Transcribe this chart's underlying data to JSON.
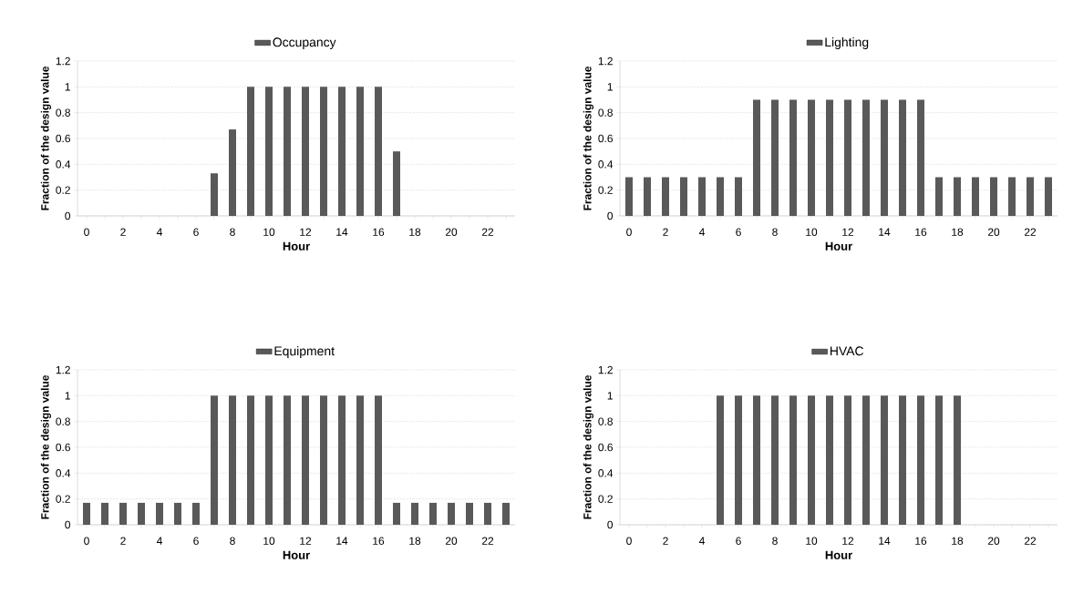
{
  "chart_data": [
    {
      "type": "bar",
      "categories": [
        "0",
        null,
        "2",
        null,
        "4",
        null,
        "6",
        null,
        "8",
        null,
        "10",
        null,
        "12",
        null,
        "14",
        null,
        "16",
        null,
        "18",
        null,
        "20",
        null,
        "22",
        null
      ],
      "series": [
        {
          "name": "Occupancy",
          "color": "#595959",
          "values": [
            0,
            0,
            0,
            0,
            0,
            0,
            0,
            0.33,
            0.67,
            1,
            1,
            1,
            1,
            1,
            1,
            1,
            1,
            0.5,
            0,
            0,
            0,
            0,
            0,
            0
          ]
        }
      ],
      "xlabel": "Hour",
      "ylabel": "Fraction of the design value",
      "ylim": [
        0,
        1.2
      ],
      "yticks": [
        0,
        0.2,
        0.4,
        0.6,
        0.8,
        1,
        1.2
      ],
      "grid": "y",
      "legend": "top"
    },
    {
      "type": "bar",
      "categories": [
        "0",
        null,
        "2",
        null,
        "4",
        null,
        "6",
        null,
        "8",
        null,
        "10",
        null,
        "12",
        null,
        "14",
        null,
        "16",
        null,
        "18",
        null,
        "20",
        null,
        "22",
        null
      ],
      "series": [
        {
          "name": "Lighting",
          "color": "#595959",
          "values": [
            0.3,
            0.3,
            0.3,
            0.3,
            0.3,
            0.3,
            0.3,
            0.9,
            0.9,
            0.9,
            0.9,
            0.9,
            0.9,
            0.9,
            0.9,
            0.9,
            0.9,
            0.3,
            0.3,
            0.3,
            0.3,
            0.3,
            0.3,
            0.3
          ]
        }
      ],
      "xlabel": "Hour",
      "ylabel": "Fraction of the design value",
      "ylim": [
        0,
        1.2
      ],
      "yticks": [
        0,
        0.2,
        0.4,
        0.6,
        0.8,
        1,
        1.2
      ],
      "grid": "y",
      "legend": "top"
    },
    {
      "type": "bar",
      "categories": [
        "0",
        null,
        "2",
        null,
        "4",
        null,
        "6",
        null,
        "8",
        null,
        "10",
        null,
        "12",
        null,
        "14",
        null,
        "16",
        null,
        "18",
        null,
        "20",
        null,
        "22",
        null
      ],
      "series": [
        {
          "name": "Equipment",
          "color": "#595959",
          "values": [
            0.17,
            0.17,
            0.17,
            0.17,
            0.17,
            0.17,
            0.17,
            1,
            1,
            1,
            1,
            1,
            1,
            1,
            1,
            1,
            1,
            0.17,
            0.17,
            0.17,
            0.17,
            0.17,
            0.17,
            0.17
          ]
        }
      ],
      "xlabel": "Hour",
      "ylabel": "Fraction of the design value",
      "ylim": [
        0,
        1.2
      ],
      "yticks": [
        0,
        0.2,
        0.4,
        0.6,
        0.8,
        1,
        1.2
      ],
      "grid": "y",
      "legend": "top"
    },
    {
      "type": "bar",
      "categories": [
        "0",
        null,
        "2",
        null,
        "4",
        null,
        "6",
        null,
        "8",
        null,
        "10",
        null,
        "12",
        null,
        "14",
        null,
        "16",
        null,
        "18",
        null,
        "20",
        null,
        "22",
        null
      ],
      "series": [
        {
          "name": "HVAC",
          "color": "#595959",
          "values": [
            0,
            0,
            0,
            0,
            0,
            1,
            1,
            1,
            1,
            1,
            1,
            1,
            1,
            1,
            1,
            1,
            1,
            1,
            1,
            0,
            0,
            0,
            0,
            0
          ]
        }
      ],
      "xlabel": "Hour",
      "ylabel": "Fraction of the design value",
      "ylim": [
        0,
        1.2
      ],
      "yticks": [
        0,
        0.2,
        0.4,
        0.6,
        0.8,
        1,
        1.2
      ],
      "grid": "y",
      "legend": "top"
    }
  ]
}
